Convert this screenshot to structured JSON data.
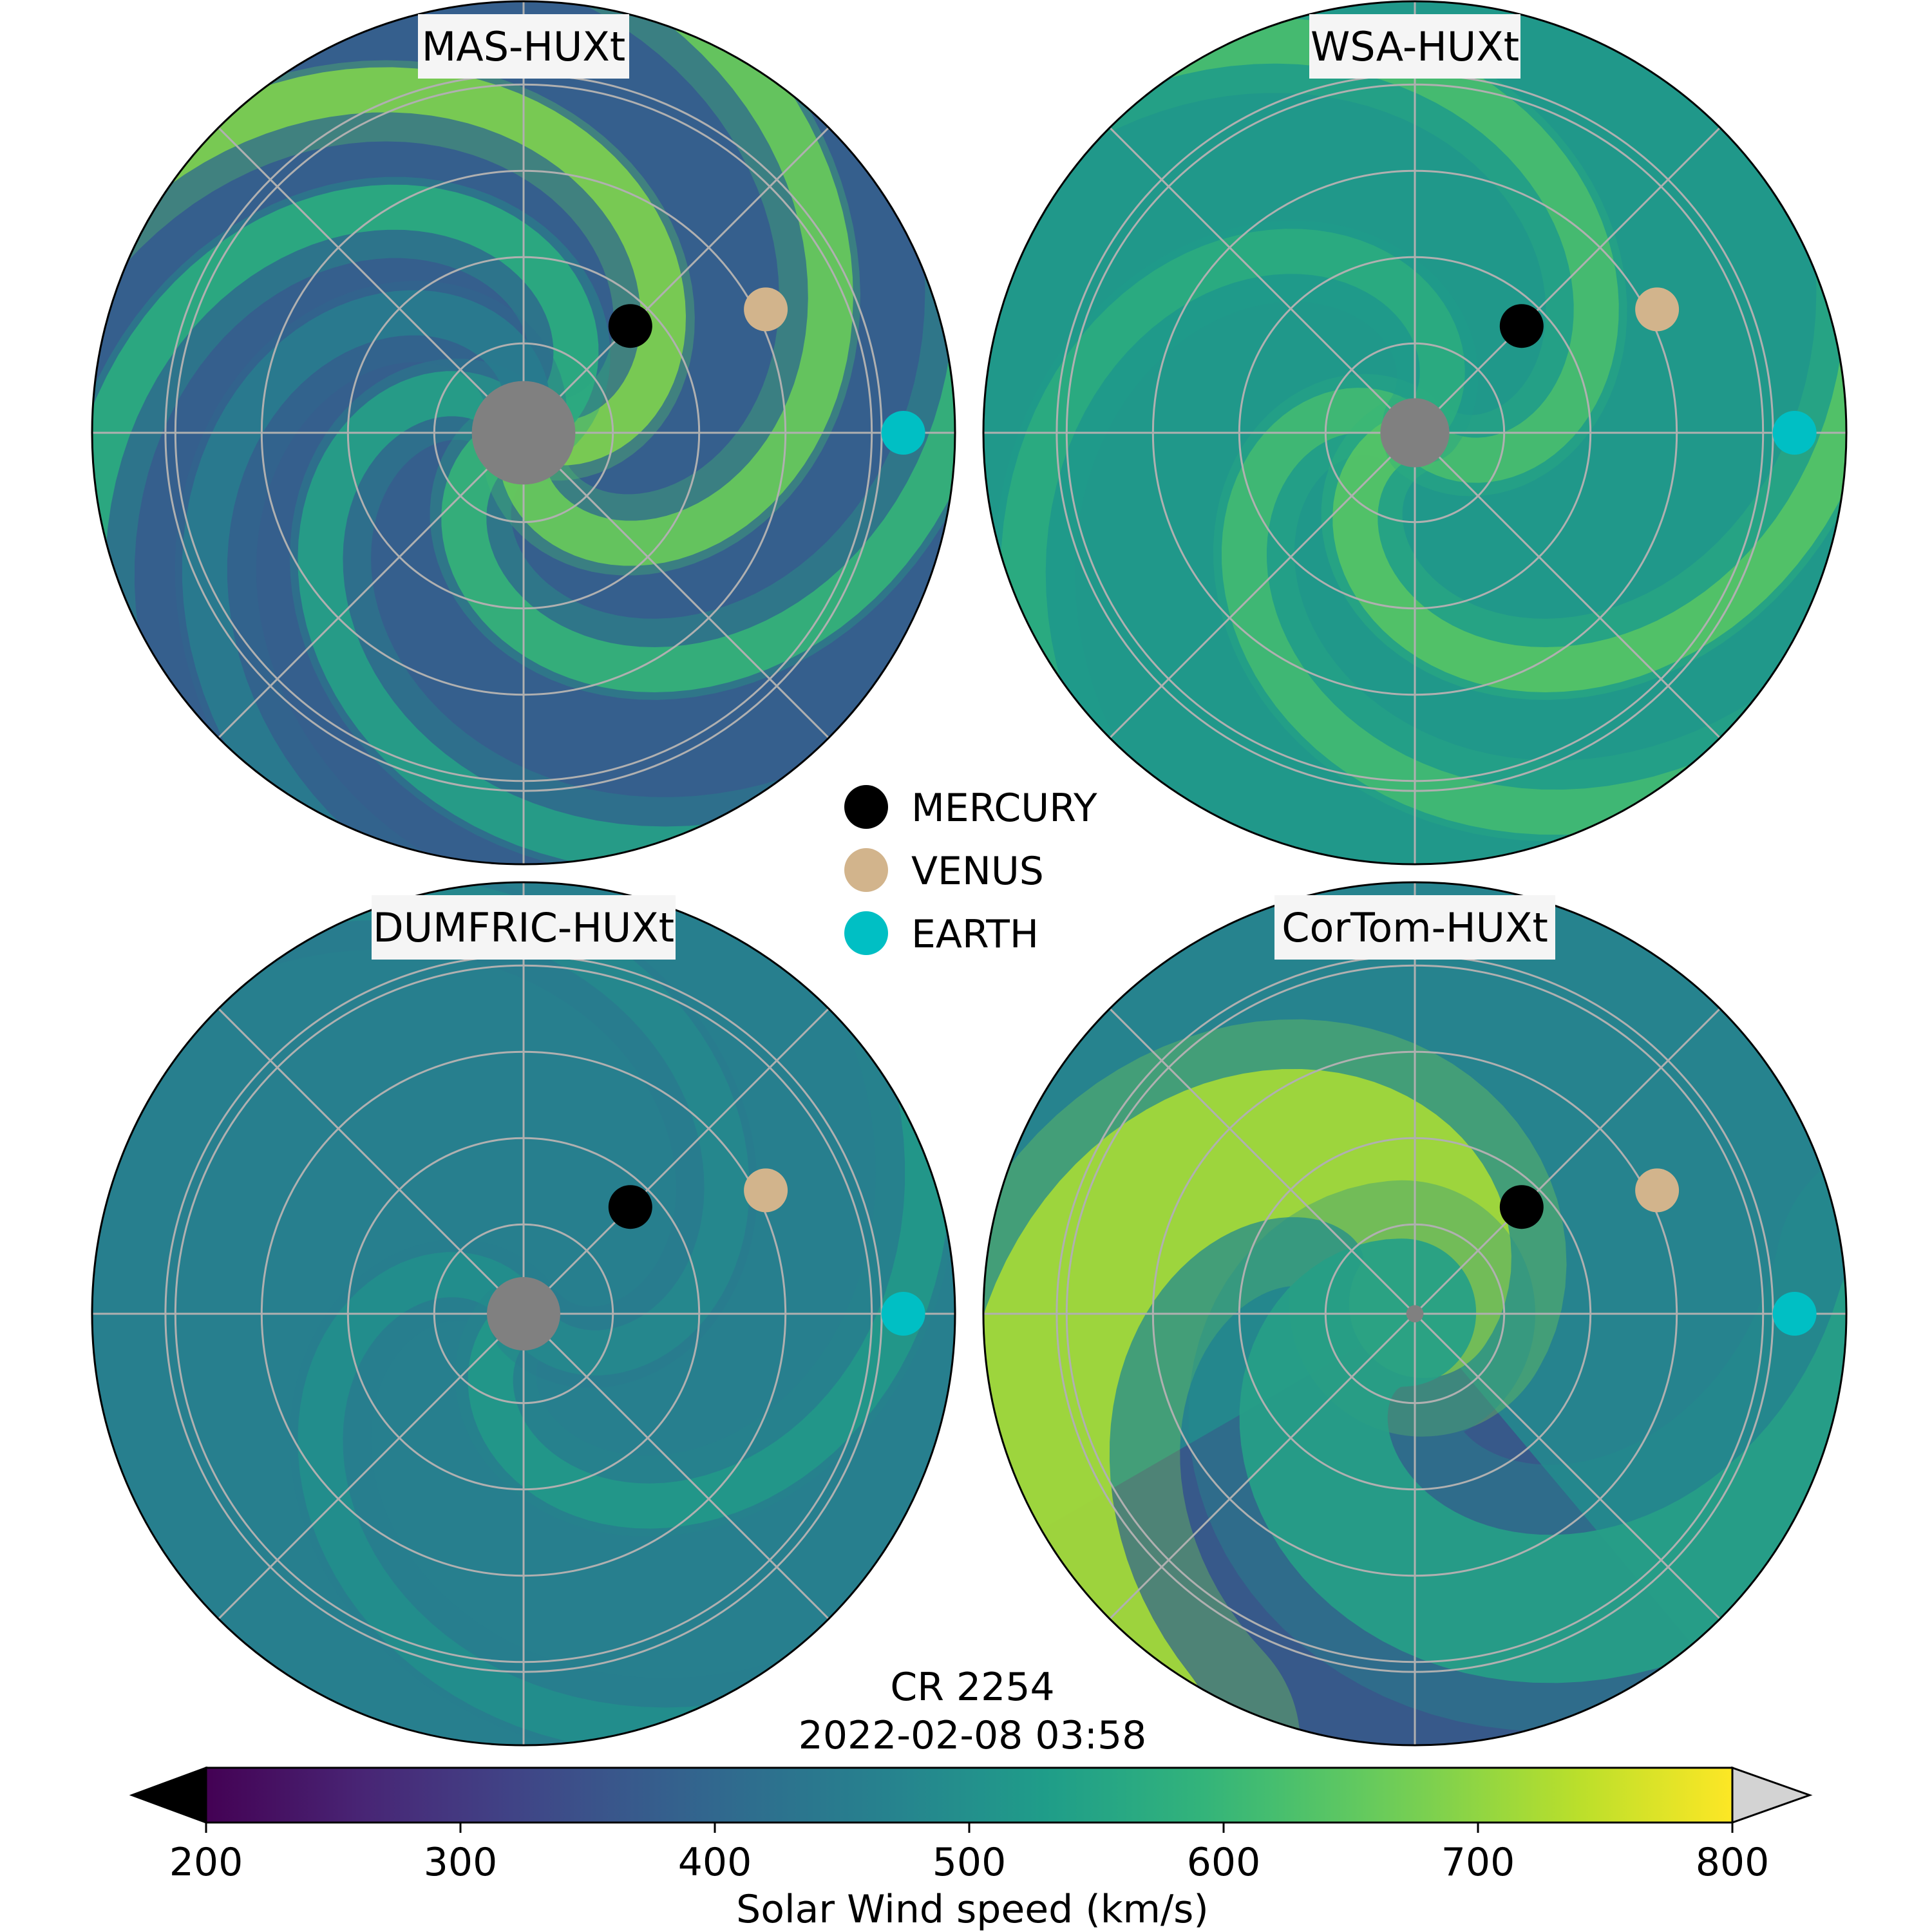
{
  "chart_data": {
    "type": "heatmap",
    "subtype": "polar-solar-wind-speed-maps",
    "panels": [
      {
        "title": "MAS-HUXt",
        "background_speed": 380,
        "sun_radius_fraction": 0.12,
        "streams": [
          {
            "angle_deg": 120,
            "speed": 560
          },
          {
            "angle_deg": 195,
            "speed": 610
          },
          {
            "angle_deg": 255,
            "speed": 680
          },
          {
            "angle_deg": 330,
            "speed": 700
          },
          {
            "angle_deg": 20,
            "speed": 590
          },
          {
            "angle_deg": 70,
            "speed": 470
          }
        ],
        "planets": {
          "MERCURY": [
            0.35,
            45
          ],
          "VENUS": [
            0.63,
            27
          ],
          "EARTH": [
            0.88,
            0
          ]
        }
      },
      {
        "title": "WSA-HUXt",
        "background_speed": 520,
        "sun_radius_fraction": 0.08,
        "streams": [
          {
            "angle_deg": 135,
            "speed": 630
          },
          {
            "angle_deg": 195,
            "speed": 660
          },
          {
            "angle_deg": 310,
            "speed": 640
          },
          {
            "angle_deg": 40,
            "speed": 590
          }
        ],
        "planets": {
          "MERCURY": [
            0.35,
            45
          ],
          "VENUS": [
            0.63,
            27
          ],
          "EARTH": [
            0.88,
            0
          ]
        }
      },
      {
        "title": "DUMFRIC-HUXt",
        "background_speed": 460,
        "sun_radius_fraction": 0.085,
        "streams": [
          {
            "angle_deg": 120,
            "speed": 520
          },
          {
            "angle_deg": 215,
            "speed": 540
          },
          {
            "angle_deg": 300,
            "speed": 500
          }
        ],
        "planets": {
          "MERCURY": [
            0.35,
            45
          ],
          "VENUS": [
            0.63,
            27
          ],
          "EARTH": [
            0.88,
            0
          ]
        }
      },
      {
        "title": "CorTom-HUXt",
        "background_speed": 470,
        "sun_radius_fraction": 0.02,
        "streams": [
          {
            "angle_deg": 45,
            "speed": 740
          },
          {
            "angle_deg": 170,
            "speed": 560
          }
        ],
        "slow_region": {
          "angle_deg": 260,
          "speed": 350
        },
        "planets": {
          "MERCURY": [
            0.35,
            45
          ],
          "VENUS": [
            0.63,
            27
          ],
          "EARTH": [
            0.88,
            0
          ]
        }
      }
    ],
    "legend": {
      "placement": "center",
      "entries": [
        {
          "label": "MERCURY",
          "color": "#000000"
        },
        {
          "label": "VENUS",
          "color": "#d2b48c"
        },
        {
          "label": "EARTH",
          "color": "#00bfc4"
        }
      ]
    },
    "annotation": {
      "line1": "CR 2254",
      "line2": "2022-02-08 03:58"
    },
    "colorbar": {
      "label": "Solar Wind speed (km/s)",
      "range": [
        200,
        800
      ],
      "ticks": [
        200,
        300,
        400,
        500,
        600,
        700,
        800
      ],
      "tick_labels": [
        "200",
        "300",
        "400",
        "500",
        "600",
        "700",
        "800"
      ],
      "colormap": "viridis",
      "extend_low_color": "#000000",
      "extend_high_color": "#d3d3d3"
    },
    "grid": true,
    "sun_color": "#808080"
  }
}
